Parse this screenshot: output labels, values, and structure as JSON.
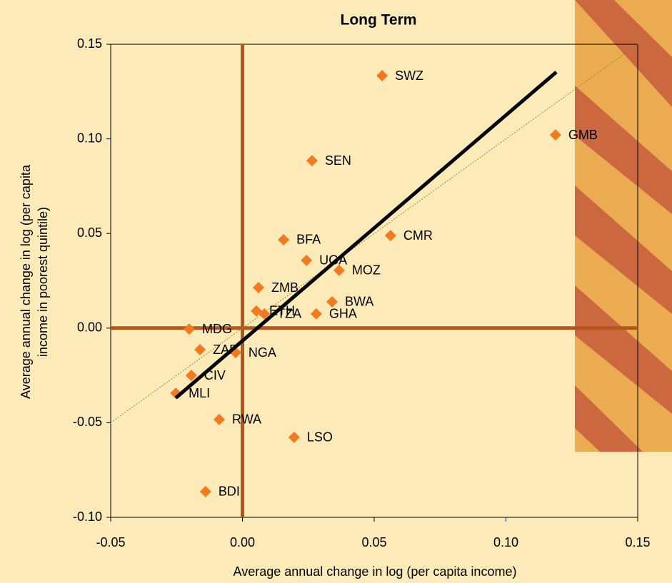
{
  "chart_data": {
    "type": "scatter",
    "title": "Long Term",
    "xlabel": "Average annual change in log (per capita income)",
    "ylabel": [
      "Average annual change in log (per capita",
      "income in poorest quintile)"
    ],
    "xlim": [
      -0.05,
      0.15
    ],
    "ylim": [
      -0.1,
      0.15
    ],
    "xticks": [
      {
        "value": -0.05,
        "label": "-0.05"
      },
      {
        "value": 0,
        "label": "0.00"
      },
      0.05,
      {
        "value": 0.1,
        "label": "0.10"
      },
      0.15
    ],
    "yticks": [
      {
        "value": -0.1,
        "label": "-0.10"
      },
      -0.05,
      {
        "value": 0,
        "label": "0.00"
      },
      0.05,
      {
        "value": 0.1,
        "label": "0.10"
      },
      0.15
    ],
    "color": "#f47a1f",
    "labels": [
      "SWZ",
      "GMB",
      "SEN",
      "CMR",
      "BFA",
      "UGA",
      "MOZ",
      "ZMB",
      "BWA",
      "ETH",
      "TZA",
      "GHA",
      "MDG",
      "ZAF",
      "NGA",
      "CIV",
      "MLI",
      "RWA",
      "LSO",
      "BDI"
    ],
    "x": [
      0.053,
      0.1188,
      0.0264,
      0.0562,
      0.0156,
      0.0243,
      0.0367,
      0.0061,
      0.034,
      0.0053,
      0.0083,
      0.028,
      -0.0202,
      -0.0161,
      -0.0026,
      -0.0194,
      -0.0253,
      -0.0088,
      0.0196,
      -0.014
    ],
    "y": [
      0.1334,
      0.1021,
      0.0885,
      0.0489,
      0.0467,
      0.0358,
      0.0305,
      0.0214,
      0.0139,
      0.009,
      0.0075,
      0.0075,
      -0.0005,
      -0.0114,
      -0.0129,
      -0.025,
      -0.0344,
      -0.0483,
      -0.0577,
      -0.0864
    ],
    "fit_line": {
      "x": [
        -0.0253,
        0.1191
      ],
      "y": [
        -0.0369,
        0.1353
      ],
      "color": "#000000"
    },
    "reference_line": {
      "x": [
        -0.05,
        0.15
      ],
      "y": [
        -0.05,
        0.15
      ],
      "color": "#9a8a20"
    },
    "zero_line_color": "#b5561c"
  }
}
